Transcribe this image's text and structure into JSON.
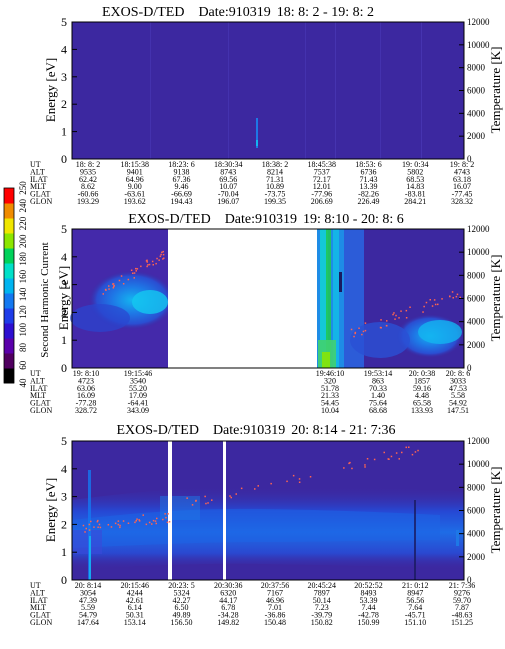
{
  "chart_data": [
    {
      "type": "heatmap",
      "title": "EXOS-D/TED",
      "date_label": "Date:910319",
      "time_range": "18: 8: 2 - 19: 8: 2",
      "ylabel_left": "Energy [eV]",
      "ylabel_right": "Temperature [K]",
      "ylim_left": [
        0,
        5
      ],
      "yticks_left": [
        "0",
        "1",
        "2",
        "3",
        "4",
        "5"
      ],
      "ylim_right": [
        0,
        12000
      ],
      "yticks_right": [
        "0",
        "2000",
        "4000",
        "6000",
        "8000",
        "10000",
        "12000"
      ],
      "gaps": [],
      "table": {
        "row_labels": [
          "UT",
          "ALT",
          "ILAT",
          "MLT",
          "GLAT",
          "GLON"
        ],
        "columns": [
          [
            "18: 8: 2",
            "9535",
            "62.42",
            "8.62",
            "-60.66",
            "193.29"
          ],
          [
            "18:15:38",
            "9401",
            "64.96",
            "9.00",
            "-63.61",
            "193.62"
          ],
          [
            "18:23: 6",
            "9138",
            "67.36",
            "9.46",
            "-66.69",
            "194.43"
          ],
          [
            "18:30:34",
            "8743",
            "69.56",
            "10.07",
            "-70.04",
            "196.07"
          ],
          [
            "18:38: 2",
            "8214",
            "71.31",
            "10.89",
            "-73.75",
            "199.35"
          ],
          [
            "18:45:38",
            "7537",
            "72.17",
            "12.01",
            "-77.96",
            "206.69"
          ],
          [
            "18:53: 6",
            "6736",
            "71.43",
            "13.39",
            "-82.26",
            "226.49"
          ],
          [
            "19: 0:34",
            "5802",
            "68.53",
            "14.83",
            "-83.81",
            "284.21"
          ],
          [
            "19: 8: 2",
            "4743",
            "63.18",
            "16.07",
            "-77.45",
            "328.32"
          ]
        ]
      }
    },
    {
      "type": "heatmap",
      "title": "EXOS-D/TED",
      "date_label": "Date:910319",
      "time_range": "19: 8:10 - 20: 8: 6",
      "ylabel_left": "Energy [eV]",
      "ylabel_right": "Temperature [K]",
      "ylim_left": [
        0,
        5
      ],
      "yticks_left": [
        "0",
        "1",
        "2",
        "3",
        "4",
        "5"
      ],
      "ylim_right": [
        0,
        12000
      ],
      "yticks_right": [
        "0",
        "2000",
        "4000",
        "6000",
        "8000",
        "10000",
        "12000"
      ],
      "gaps": [
        [
          0.27,
          0.61
        ]
      ],
      "table": {
        "row_labels": [
          "UT",
          "ALT",
          "ILAT",
          "MLT",
          "GLAT",
          "GLON"
        ],
        "columns": [
          [
            "19: 8:10",
            "4723",
            "63.06",
            "16.09",
            "-77.28",
            "328.72"
          ],
          [
            "19:15:46",
            "3540",
            "55.20",
            "17.09",
            "-64.41",
            "343.09"
          ],
          [
            "19:46:10",
            "320",
            "51.78",
            "21.33",
            "54.45",
            "10.04"
          ],
          [
            "19:53:14",
            "863",
            "70.33",
            "1.40",
            "75.64",
            "68.68"
          ],
          [
            "20: 0:38",
            "1857",
            "59.16",
            "4.48",
            "65.58",
            "133.93"
          ],
          [
            "20: 8: 6",
            "3033",
            "47.53",
            "5.58",
            "54.92",
            "147.51"
          ]
        ]
      }
    },
    {
      "type": "heatmap",
      "title": "EXOS-D/TED",
      "date_label": "Date:910319",
      "time_range": "20: 8:14 - 21: 7:36",
      "ylabel_left": "Energy [eV]",
      "ylabel_right": "Temperature [K]",
      "ylim_left": [
        0,
        5
      ],
      "yticks_left": [
        "0",
        "1",
        "2",
        "3",
        "4",
        "5"
      ],
      "ylim_right": [
        0,
        12000
      ],
      "yticks_right": [
        "0",
        "2000",
        "4000",
        "6000",
        "8000",
        "10000",
        "12000"
      ],
      "gaps": [
        [
          0.245,
          0.26
        ],
        [
          0.385,
          0.395
        ]
      ],
      "table": {
        "row_labels": [
          "UT",
          "ALT",
          "ILAT",
          "MLT",
          "GLAT",
          "GLON"
        ],
        "columns": [
          [
            "20: 8:14",
            "3054",
            "47.39",
            "5.59",
            "54.79",
            "147.64"
          ],
          [
            "20:15:46",
            "4244",
            "42.61",
            "6.14",
            "50.31",
            "153.14"
          ],
          [
            "20:23: 5",
            "5324",
            "42.27",
            "6.50",
            "49.89",
            "156.50"
          ],
          [
            "20:30:36",
            "6320",
            "44.17",
            "6.78",
            "-34.28",
            "149.82"
          ],
          [
            "20:37:56",
            "7167",
            "46.96",
            "7.01",
            "-36.86",
            "150.48"
          ],
          [
            "20:45:24",
            "7897",
            "50.14",
            "7.23",
            "-39.79",
            "150.82"
          ],
          [
            "20:52:52",
            "8493",
            "53.39",
            "7.44",
            "-42.78",
            "150.99"
          ],
          [
            "21: 0:12",
            "8947",
            "56.56",
            "7.64",
            "-45.71",
            "151.10"
          ],
          [
            "21: 7:36",
            "9276",
            "59.70",
            "7.87",
            "-48.63",
            "151.25"
          ]
        ]
      }
    }
  ],
  "colorbar": {
    "label": "Second Harmonic Current",
    "ticks": [
      "40",
      "60",
      "80",
      "100",
      "120",
      "140",
      "160",
      "180",
      "200",
      "220",
      "240",
      "250"
    ],
    "colors": [
      "#000000",
      "#500060",
      "#5a00aa",
      "#2d0fd0",
      "#1e3ce8",
      "#1478f0",
      "#00b4f0",
      "#00e0c8",
      "#00d25a",
      "#8ce600",
      "#f0e600",
      "#f08c00",
      "#ff0000"
    ]
  },
  "colors": {
    "background": "#3c28a0",
    "band_low": "#2d3cc8",
    "band_mid": "#1e64e6",
    "band_high": "#14aaf0",
    "hot": "#00d2aa",
    "green": "#20c850",
    "temperature_points": "#ff6450"
  }
}
